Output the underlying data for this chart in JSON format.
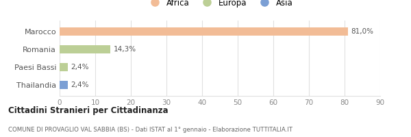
{
  "categories": [
    "Marocco",
    "Romania",
    "Paesi Bassi",
    "Thailandia"
  ],
  "values": [
    81.0,
    14.3,
    2.4,
    2.4
  ],
  "labels": [
    "81,0%",
    "14,3%",
    "2,4%",
    "2,4%"
  ],
  "colors": [
    "#f2bc96",
    "#bccf96",
    "#bccf96",
    "#7b9fd4"
  ],
  "legend_items": [
    {
      "label": "Africa",
      "color": "#f2bc96"
    },
    {
      "label": "Europa",
      "color": "#bccf96"
    },
    {
      "label": "Asia",
      "color": "#7b9fd4"
    }
  ],
  "xlim": [
    0,
    90
  ],
  "xticks": [
    0,
    10,
    20,
    30,
    40,
    50,
    60,
    70,
    80,
    90
  ],
  "title_bold": "Cittadini Stranieri per Cittadinanza",
  "subtitle": "COMUNE DI PROVAGLIO VAL SABBIA (BS) - Dati ISTAT al 1° gennaio - Elaborazione TUTTITALIA.IT",
  "background_color": "#ffffff",
  "grid_color": "#e0e0e0"
}
